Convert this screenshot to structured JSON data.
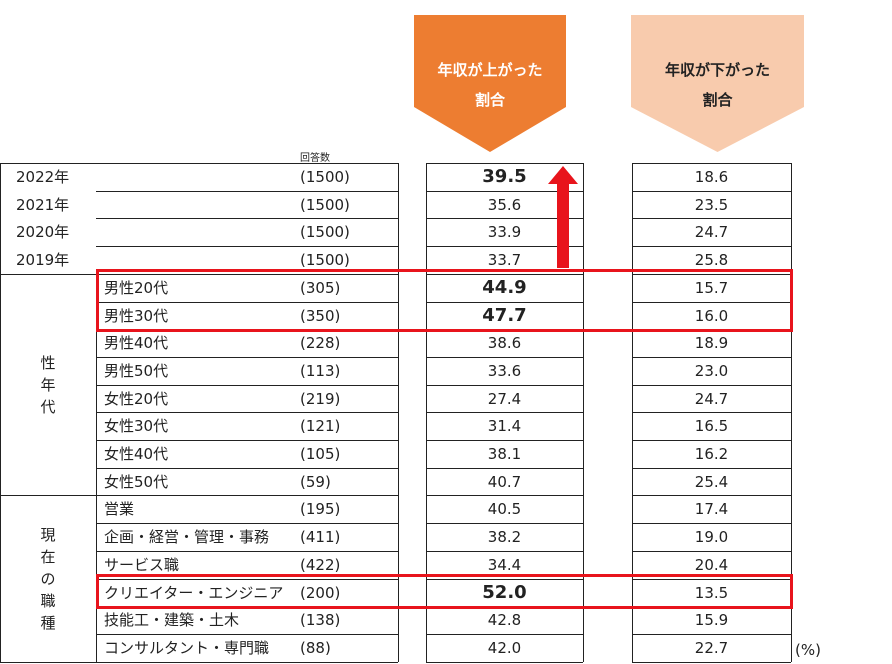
{
  "colors": {
    "up_header": "#ed7d31",
    "down_header": "#f8cbad",
    "highlight_border": "#e8141c",
    "arrow": "#e8141c"
  },
  "headers": {
    "count_label": "回答数",
    "up_line1": "年収が上がった",
    "up_line2": "割合",
    "down_line1": "年収が下がった",
    "down_line2": "割合"
  },
  "unit": "(%)",
  "chart_data": {
    "type": "table",
    "columns": [
      "年収が上がった割合",
      "年収が下がった割合"
    ],
    "groups": [
      {
        "label": "",
        "rows": [
          {
            "label": "2022年",
            "n": "(1500)",
            "up": "39.5",
            "down": "18.6",
            "emphasis": true
          },
          {
            "label": "2021年",
            "n": "(1500)",
            "up": "35.6",
            "down": "23.5"
          },
          {
            "label": "2020年",
            "n": "(1500)",
            "up": "33.9",
            "down": "24.7"
          },
          {
            "label": "2019年",
            "n": "(1500)",
            "up": "33.7",
            "down": "25.8"
          }
        ]
      },
      {
        "label": [
          "性",
          "年",
          "代"
        ],
        "rows": [
          {
            "label": "男性20代",
            "n": "(305)",
            "up": "44.9",
            "down": "15.7",
            "emphasis": true
          },
          {
            "label": "男性30代",
            "n": "(350)",
            "up": "47.7",
            "down": "16.0",
            "emphasis": true
          },
          {
            "label": "男性40代",
            "n": "(228)",
            "up": "38.6",
            "down": "18.9"
          },
          {
            "label": "男性50代",
            "n": "(113)",
            "up": "33.6",
            "down": "23.0"
          },
          {
            "label": "女性20代",
            "n": "(219)",
            "up": "27.4",
            "down": "24.7"
          },
          {
            "label": "女性30代",
            "n": "(121)",
            "up": "31.4",
            "down": "16.5"
          },
          {
            "label": "女性40代",
            "n": "(105)",
            "up": "38.1",
            "down": "16.2"
          },
          {
            "label": "女性50代",
            "n": "(59)",
            "up": "40.7",
            "down": "25.4"
          }
        ]
      },
      {
        "label": [
          "現",
          "在",
          "の",
          "職",
          "種"
        ],
        "rows": [
          {
            "label": "営業",
            "n": "(195)",
            "up": "40.5",
            "down": "17.4"
          },
          {
            "label": "企画・経営・管理・事務",
            "n": "(411)",
            "up": "38.2",
            "down": "19.0"
          },
          {
            "label": "サービス職",
            "n": "(422)",
            "up": "34.4",
            "down": "20.4"
          },
          {
            "label": "クリエイター・エンジニア",
            "n": "(200)",
            "up": "52.0",
            "down": "13.5",
            "emphasis": true
          },
          {
            "label": "技能工・建築・土木",
            "n": "(138)",
            "up": "42.8",
            "down": "15.9"
          },
          {
            "label": "コンサルタント・専門職",
            "n": "(88)",
            "up": "42.0",
            "down": "22.7"
          }
        ]
      }
    ],
    "highlighted_rows": [
      "男性20代",
      "男性30代",
      "クリエイター・エンジニア"
    ]
  }
}
